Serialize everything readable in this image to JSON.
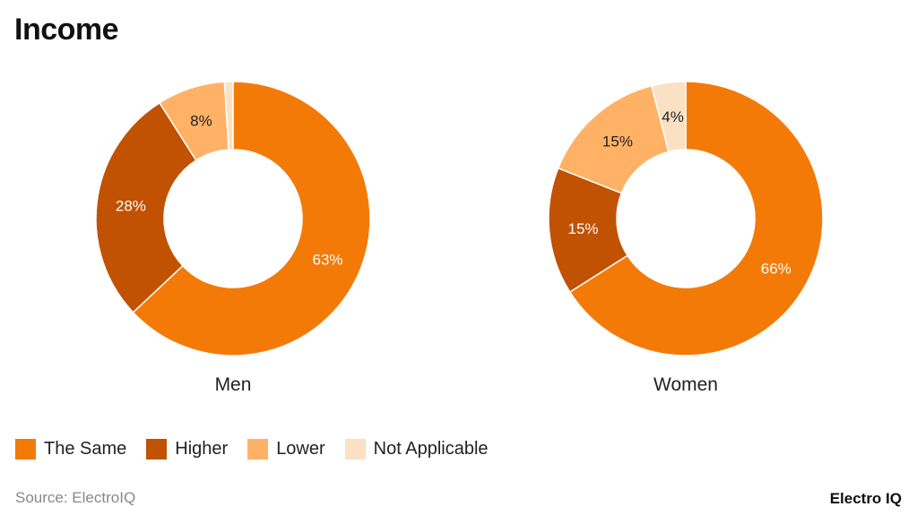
{
  "title": "Income",
  "source": "Source: ElectroIQ",
  "logo": "Electro IQ",
  "chart_data": {
    "type": "pie",
    "variant": "donut",
    "categories": [
      "The Same",
      "Higher",
      "Lower",
      "Not Applicable"
    ],
    "colors": [
      "#F47A08",
      "#C05202",
      "#FFB265",
      "#FBE1C4"
    ],
    "legend_position": "bottom-left",
    "charts": [
      {
        "name": "Men",
        "values": [
          63,
          28,
          8,
          1
        ],
        "labels": [
          "63%",
          "28%",
          "8%",
          ""
        ]
      },
      {
        "name": "Women",
        "values": [
          66,
          15,
          15,
          4
        ],
        "labels": [
          "66%",
          "15%",
          "15%",
          "4%"
        ]
      }
    ]
  }
}
